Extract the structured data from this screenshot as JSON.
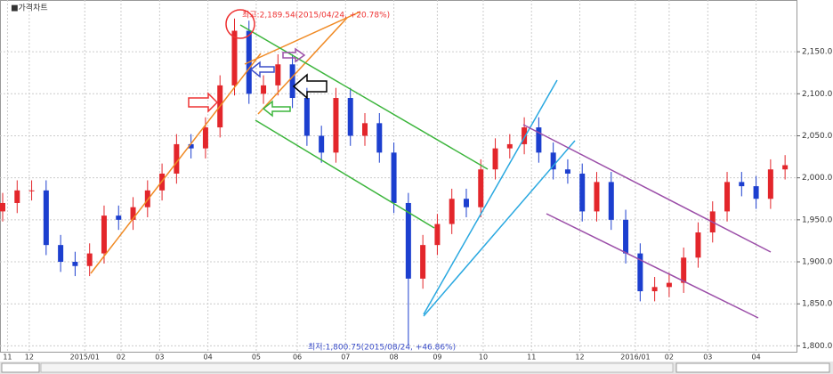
{
  "chart_data": {
    "type": "candlestick",
    "title": "■가격차트",
    "annotations": [
      "최고:2,189.54(2015/04/24, +20.78%)",
      "최저:1,800.75(2015/08/24, +46.86%)"
    ],
    "up_color": "#e3262b",
    "down_color": "#1c3fcf",
    "grid": true,
    "xlim": [
      0,
      328
    ],
    "ylim": [
      1793,
      2201
    ],
    "xticks": [
      {
        "value": 2,
        "label": "11"
      },
      {
        "value": 11,
        "label": "12"
      },
      {
        "value": 34,
        "label": "2015/01"
      },
      {
        "value": 49,
        "label": "02"
      },
      {
        "value": 65,
        "label": "03"
      },
      {
        "value": 85,
        "label": "04"
      },
      {
        "value": 105,
        "label": "05"
      },
      {
        "value": 122,
        "label": "06"
      },
      {
        "value": 142,
        "label": "07"
      },
      {
        "value": 162,
        "label": "08"
      },
      {
        "value": 180,
        "label": "09"
      },
      {
        "value": 199,
        "label": "10"
      },
      {
        "value": 219,
        "label": "11"
      },
      {
        "value": 239,
        "label": "12"
      },
      {
        "value": 262,
        "label": "2016/01"
      },
      {
        "value": 276,
        "label": "02"
      },
      {
        "value": 292,
        "label": "03"
      },
      {
        "value": 312,
        "label": "04"
      }
    ],
    "yticks": [
      {
        "value": 1800,
        "label": "1,800.00"
      },
      {
        "value": 1850,
        "label": "1,850.00"
      },
      {
        "value": 1900,
        "label": "1,900.00"
      },
      {
        "value": 1950,
        "label": "1,950.00"
      },
      {
        "value": 2000,
        "label": "2,000.00"
      },
      {
        "value": 2050,
        "label": "2,050.00"
      },
      {
        "value": 2100,
        "label": "2,100.00"
      },
      {
        "value": 2150,
        "label": "2,150.00"
      }
    ],
    "x": [
      0,
      6,
      12,
      18,
      24,
      30,
      36,
      42,
      48,
      54,
      60,
      66,
      72,
      78,
      84,
      90,
      96,
      102,
      108,
      114,
      120,
      126,
      132,
      138,
      144,
      150,
      156,
      162,
      168,
      174,
      180,
      186,
      192,
      198,
      204,
      210,
      216,
      222,
      228,
      234,
      240,
      246,
      252,
      258,
      264,
      270,
      276,
      282,
      288,
      294,
      300,
      306,
      312,
      318,
      324
    ],
    "open": [
      1960,
      1970,
      1985,
      1985,
      1920,
      1900,
      1895,
      1910,
      1955,
      1950,
      1965,
      1985,
      2005,
      2040,
      2035,
      2060,
      2110,
      2175,
      2100,
      2110,
      2135,
      2095,
      2050,
      2030,
      2095,
      2050,
      2065,
      2030,
      1970,
      1880,
      1920,
      1945,
      1975,
      1965,
      2010,
      2035,
      2040,
      2060,
      2030,
      2010,
      2005,
      1960,
      1995,
      1950,
      1910,
      1865,
      1870,
      1875,
      1905,
      1935,
      1960,
      1995,
      1990,
      1975,
      2010
    ],
    "high": [
      1982,
      1997,
      1997,
      1997,
      1932,
      1912,
      1922,
      1967,
      1967,
      1977,
      1997,
      2017,
      2052,
      2052,
      2072,
      2122,
      2189.54,
      2187,
      2122,
      2147,
      2147,
      2107,
      2062,
      2107,
      2107,
      2077,
      2077,
      2042,
      1982,
      1932,
      1957,
      1987,
      1987,
      2022,
      2047,
      2052,
      2072,
      2072,
      2042,
      2022,
      2017,
      2007,
      2007,
      1962,
      1922,
      1882,
      1887,
      1917,
      1947,
      1972,
      2007,
      2007,
      2002,
      2022,
      2027
    ],
    "low": [
      1948,
      1958,
      1973,
      1908,
      1888,
      1883,
      1883,
      1898,
      1938,
      1938,
      1953,
      1973,
      1993,
      2023,
      2023,
      2048,
      2098,
      2088,
      2088,
      2098,
      2083,
      2038,
      2018,
      2018,
      2038,
      2038,
      2018,
      1958,
      1800.75,
      1868,
      1908,
      1933,
      1953,
      1953,
      1998,
      2023,
      2028,
      2018,
      1998,
      1993,
      1948,
      1948,
      1938,
      1898,
      1853,
      1853,
      1858,
      1863,
      1893,
      1923,
      1948,
      1978,
      1963,
      1963,
      1998
    ],
    "close": [
      1970,
      1985,
      1985,
      1920,
      1900,
      1895,
      1910,
      1955,
      1950,
      1965,
      1985,
      2005,
      2040,
      2035,
      2060,
      2110,
      2175,
      2100,
      2110,
      2135,
      2095,
      2050,
      2030,
      2095,
      2050,
      2065,
      2030,
      1970,
      1880,
      1920,
      1945,
      1975,
      1965,
      2010,
      2035,
      2040,
      2060,
      2030,
      2010,
      2005,
      1960,
      1995,
      1950,
      1910,
      1865,
      1870,
      1875,
      1905,
      1935,
      1960,
      1995,
      1990,
      1975,
      2010,
      2015
    ]
  }
}
